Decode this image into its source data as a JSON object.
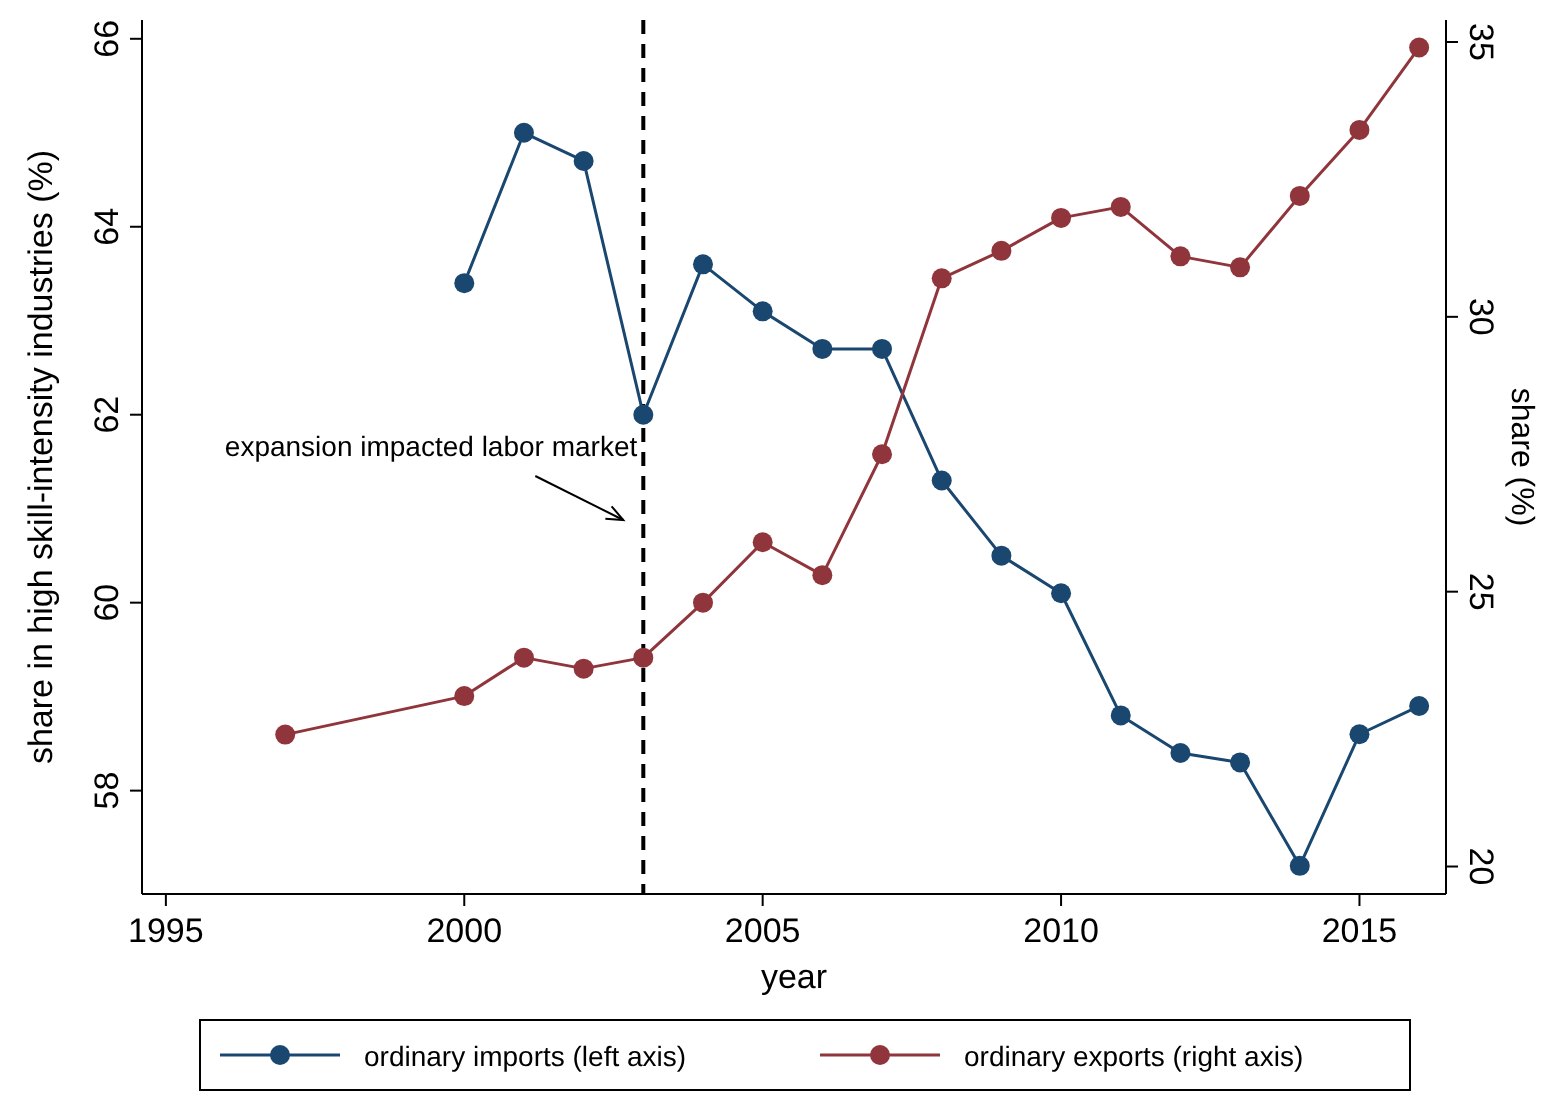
{
  "chart_data": {
    "type": "line",
    "xlabel": "year",
    "ylabel": "share in high skill-intensity industries (%)",
    "y2label": "share (%)",
    "xlim": [
      1994.6,
      2016.45
    ],
    "xticks": [
      1995,
      2000,
      2005,
      2010,
      2015
    ],
    "ylim": [
      56.9,
      66.2
    ],
    "yticks": [
      58,
      60,
      62,
      64,
      66
    ],
    "y2lim": [
      19.5,
      35.4
    ],
    "y2ticks": [
      20,
      25,
      30,
      35
    ],
    "marker": "circle",
    "line_style": "solid",
    "grid": false,
    "legend": "bottom",
    "series": [
      {
        "name": "ordinary imports (left axis)",
        "color": "#1a476f",
        "x": [
          2000,
          2001,
          2002,
          2003,
          2004,
          2005,
          2006,
          2007,
          2008,
          2009,
          2010,
          2011,
          2012,
          2013,
          2014,
          2015,
          2016
        ],
        "values": [
          63.4,
          65.0,
          64.7,
          62.0,
          63.6,
          63.1,
          62.7,
          62.7,
          61.3,
          60.5,
          60.1,
          58.8,
          58.4,
          58.3,
          57.2,
          58.6,
          58.9
        ]
      },
      {
        "name": "ordinary exports (right axis)",
        "color": "#90353b",
        "axis": "y2",
        "x": [
          1997,
          2000,
          2001,
          2002,
          2003,
          2004,
          2005,
          2006,
          2007,
          2008,
          2009,
          2010,
          2011,
          2012,
          2013,
          2014,
          2015,
          2016
        ],
        "values": [
          22.4,
          23.1,
          23.8,
          23.6,
          23.8,
          24.8,
          25.9,
          25.3,
          27.5,
          30.7,
          31.2,
          31.8,
          32.0,
          31.1,
          30.9,
          32.2,
          33.4,
          34.9
        ]
      }
    ],
    "ref_lines": [
      {
        "axis": "x",
        "value": 2003,
        "color": "#000000",
        "line_style": "dashed"
      }
    ],
    "annotations": [
      "expansion impacted labor market"
    ]
  }
}
